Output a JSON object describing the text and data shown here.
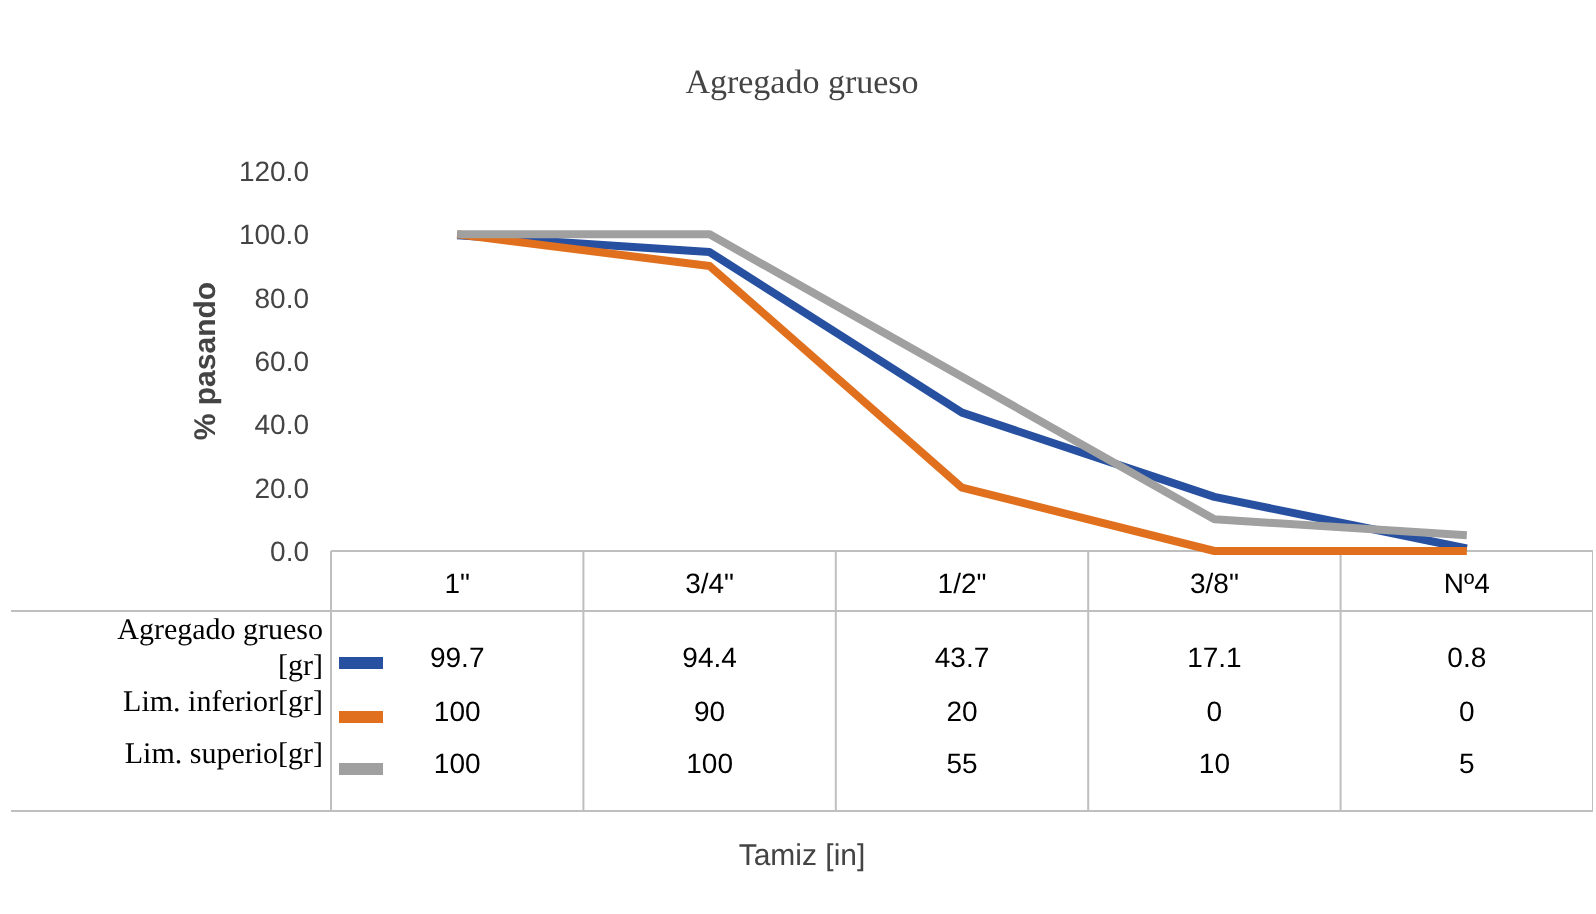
{
  "chart_data": {
    "type": "line",
    "title": "Agregado grueso",
    "annotations": [
      "Tamiz [in]"
    ],
    "ylabel": "% pasando",
    "categories": [
      "1\"",
      "3/4\"",
      "1/2\"",
      "3/8\"",
      "Nº4"
    ],
    "series": [
      {
        "name": "Agregado grueso [gr]",
        "color": "#2850a0",
        "values": [
          99.7,
          94.4,
          43.7,
          17.1,
          0.8
        ]
      },
      {
        "name": "Lim. inferior[gr]",
        "color": "#e0701e",
        "values": [
          100,
          90,
          20,
          0,
          0
        ]
      },
      {
        "name": "Lim. superio[gr]",
        "color": "#a0a0a0",
        "values": [
          100,
          100,
          55,
          10,
          5
        ]
      }
    ],
    "ylim": [
      0,
      120
    ],
    "yticks": [
      {
        "value": 0,
        "label": "0.0"
      },
      {
        "value": 20,
        "label": "20.0"
      },
      {
        "value": 40,
        "label": "40.0"
      },
      {
        "value": 60,
        "label": "60.0"
      },
      {
        "value": 80,
        "label": "80.0"
      },
      {
        "value": 100,
        "label": "100.0"
      },
      {
        "value": 120,
        "label": "120.0"
      }
    ],
    "grid": false,
    "legend": "bottom",
    "data_labels": true,
    "marker": "none",
    "line_style": "solid"
  }
}
